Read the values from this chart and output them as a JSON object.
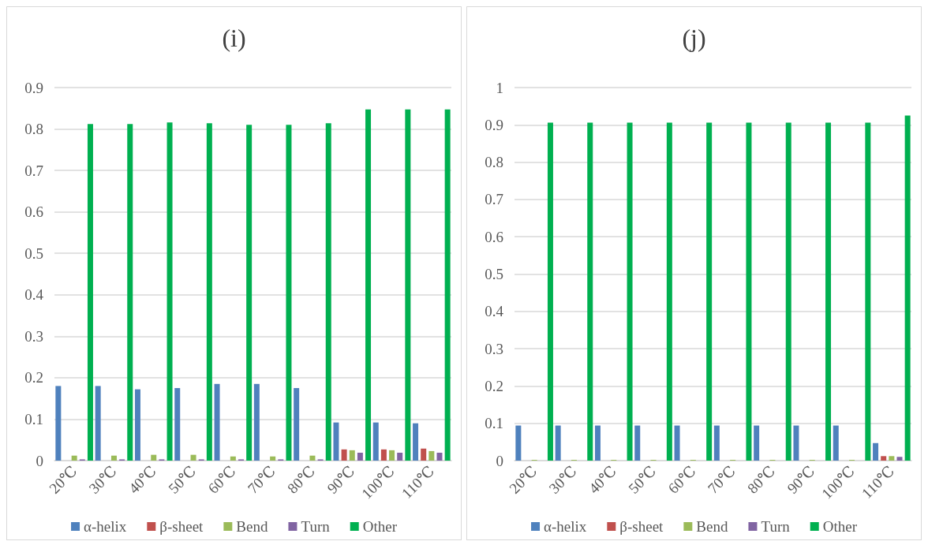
{
  "chart_data": [
    {
      "type": "bar",
      "title": "(i)",
      "categories": [
        "20℃",
        "30℃",
        "40℃",
        "50℃",
        "60℃",
        "70℃",
        "80℃",
        "90℃",
        "100℃",
        "110℃"
      ],
      "series": [
        {
          "name": "α-helix",
          "color": "#4f81bd",
          "values": [
            0.18,
            0.18,
            0.172,
            0.175,
            0.185,
            0.185,
            0.175,
            0.092,
            0.092,
            0.09
          ]
        },
        {
          "name": "β-sheet",
          "color": "#c0504d",
          "values": [
            0,
            0,
            0,
            0,
            0,
            0,
            0,
            0.027,
            0.027,
            0.029
          ]
        },
        {
          "name": "Bend",
          "color": "#9bbb59",
          "values": [
            0.012,
            0.012,
            0.014,
            0.014,
            0.01,
            0.01,
            0.012,
            0.025,
            0.025,
            0.023
          ]
        },
        {
          "name": "Turn",
          "color": "#8064a2",
          "values": [
            0.003,
            0.003,
            0.003,
            0.003,
            0.003,
            0.003,
            0.003,
            0.019,
            0.019,
            0.019
          ]
        },
        {
          "name": "Other",
          "color": "#00b050",
          "values": [
            0.812,
            0.812,
            0.816,
            0.814,
            0.81,
            0.81,
            0.814,
            0.847,
            0.847,
            0.847
          ]
        }
      ],
      "ylim": [
        0,
        0.9
      ],
      "yticks": [
        0,
        0.1,
        0.2,
        0.3,
        0.4,
        0.5,
        0.6,
        0.7,
        0.8,
        0.9
      ],
      "grid": "y",
      "legend": "bottom"
    },
    {
      "type": "bar",
      "title": "(j)",
      "categories": [
        "20℃",
        "30℃",
        "40℃",
        "50℃",
        "60℃",
        "70℃",
        "80℃",
        "90℃",
        "100℃",
        "110℃"
      ],
      "series": [
        {
          "name": "α-helix",
          "color": "#4f81bd",
          "values": [
            0.094,
            0.094,
            0.094,
            0.094,
            0.094,
            0.094,
            0.094,
            0.094,
            0.094,
            0.047
          ]
        },
        {
          "name": "β-sheet",
          "color": "#c0504d",
          "values": [
            0,
            0,
            0,
            0,
            0,
            0,
            0,
            0,
            0,
            0.012
          ]
        },
        {
          "name": "Bend",
          "color": "#9bbb59",
          "values": [
            0.002,
            0.002,
            0.002,
            0.002,
            0.002,
            0.002,
            0.002,
            0.002,
            0.002,
            0.012
          ]
        },
        {
          "name": "Turn",
          "color": "#8064a2",
          "values": [
            0,
            0,
            0,
            0,
            0,
            0,
            0,
            0,
            0,
            0.01
          ]
        },
        {
          "name": "Other",
          "color": "#00b050",
          "values": [
            0.906,
            0.906,
            0.906,
            0.906,
            0.906,
            0.906,
            0.906,
            0.906,
            0.906,
            0.925
          ]
        }
      ],
      "ylim": [
        0,
        1
      ],
      "yticks": [
        0,
        0.1,
        0.2,
        0.3,
        0.4,
        0.5,
        0.6,
        0.7,
        0.8,
        0.9,
        1
      ],
      "grid": "y",
      "legend": "bottom"
    }
  ]
}
